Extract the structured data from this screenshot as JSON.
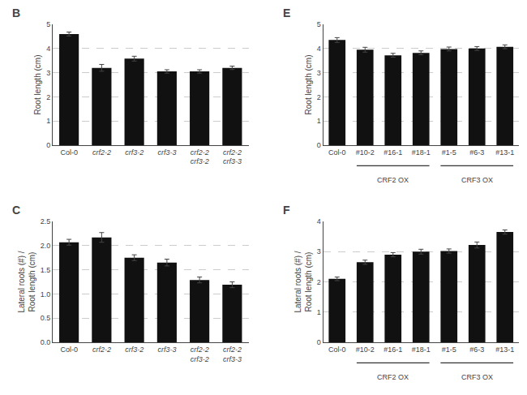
{
  "chart_data": [
    {
      "type": "bar",
      "title": "B",
      "categories": [
        "Col-0",
        "crf2-2",
        "crf3-2",
        "crf3-3",
        "crf2-2\ncrf3-2",
        "crf2-2\ncrf3-3"
      ],
      "values": [
        4.6,
        3.2,
        3.58,
        3.05,
        3.05,
        3.2
      ],
      "errors": [
        0.08,
        0.14,
        0.1,
        0.07,
        0.07,
        0.07
      ],
      "ylabel": "Root length (cm)",
      "ylim": [
        0,
        5
      ],
      "yticks": [
        0,
        1,
        2,
        3,
        4,
        5
      ],
      "color": "#111111",
      "grid": true
    },
    {
      "type": "bar",
      "title": "C",
      "categories": [
        "Col-0",
        "crf2-2",
        "crf3-2",
        "crf3-3",
        "crf2-2\ncrf3-2",
        "crf2-2\ncrf3-3"
      ],
      "values": [
        2.07,
        2.17,
        1.75,
        1.65,
        1.29,
        1.19
      ],
      "errors": [
        0.06,
        0.1,
        0.06,
        0.07,
        0.06,
        0.06
      ],
      "ylabel": "Lateral roots (#) /\nRoot length (cm)",
      "ylim": [
        0,
        2.5
      ],
      "yticks": [
        {
          "value": 0,
          "label": "0.0"
        },
        0.5,
        {
          "value": 1,
          "label": "1.0"
        },
        1.5,
        {
          "value": 2,
          "label": "2.0"
        },
        2.5
      ],
      "color": "#111111",
      "grid": true
    },
    {
      "type": "bar",
      "title": "E",
      "categories": [
        "Col-0",
        "#10-2",
        "#16-1",
        "#18-1",
        "#1-5",
        "#6-3",
        "#13-1"
      ],
      "values": [
        4.35,
        3.95,
        3.72,
        3.82,
        3.98,
        4.0,
        4.07
      ],
      "errors": [
        0.1,
        0.1,
        0.08,
        0.08,
        0.08,
        0.08,
        0.08
      ],
      "ylabel": "Root length (cm)",
      "ylim": [
        0,
        5
      ],
      "yticks": [
        0,
        1,
        2,
        3,
        4,
        5
      ],
      "groups": [
        {
          "label": "CRF2 OX",
          "categories": [
            "#10-2",
            "#16-1",
            "#18-1"
          ]
        },
        {
          "label": "CRF3 OX",
          "categories": [
            "#1-5",
            "#6-3",
            "#13-1"
          ]
        }
      ],
      "color": "#111111",
      "grid": true
    },
    {
      "type": "bar",
      "title": "F",
      "categories": [
        "Col-0",
        "#10-2",
        "#16-1",
        "#18-1",
        "#1-5",
        "#6-3",
        "#13-1"
      ],
      "values": [
        2.1,
        2.65,
        2.9,
        3.0,
        3.02,
        3.22,
        3.65
      ],
      "errors": [
        0.06,
        0.07,
        0.07,
        0.08,
        0.07,
        0.1,
        0.07
      ],
      "ylabel": "Lateral roots (#) /\nRoot length (cm)",
      "ylim": [
        0,
        4
      ],
      "yticks": [
        0,
        1,
        2,
        3,
        4
      ],
      "groups": [
        {
          "label": "CRF2 OX",
          "categories": [
            "#10-2",
            "#16-1",
            "#18-1"
          ]
        },
        {
          "label": "CRF3 OX",
          "categories": [
            "#1-5",
            "#6-3",
            "#13-1"
          ]
        }
      ],
      "color": "#111111",
      "grid": true
    }
  ]
}
